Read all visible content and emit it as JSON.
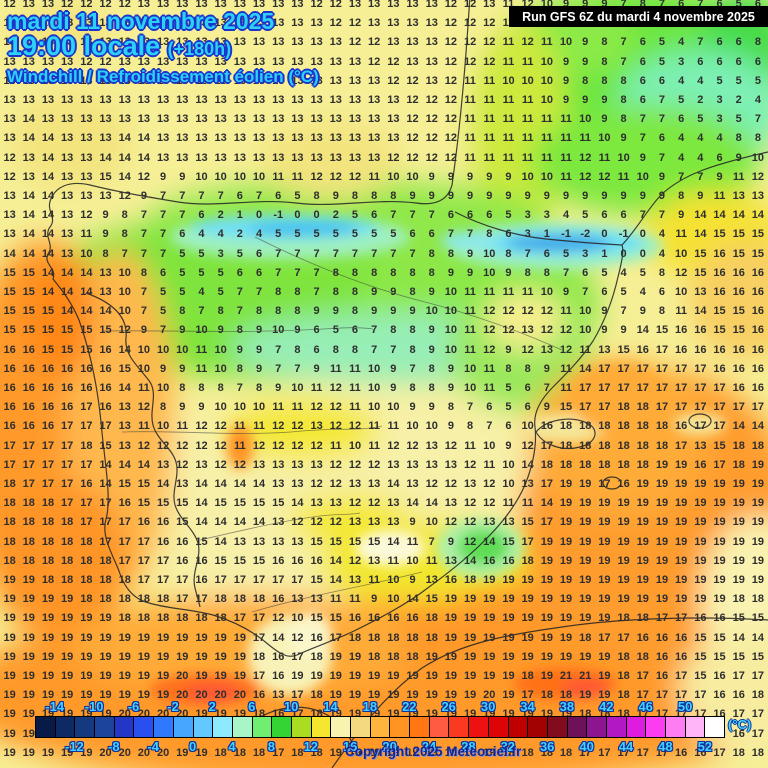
{
  "header": {
    "date_line": "mardi 11 novembre 2025",
    "time_line": "19:00 locale",
    "time_offset": "(+180h)",
    "variable_line": "Windchill / Refroidissement éolien (°C)",
    "run_info": "Run GFS 6Z du mardi 4 novembre 2025"
  },
  "footer": {
    "copyright": "Copyright 2025 Meteociel.fr",
    "unit_label": "(°C)"
  },
  "colors": {
    "header_text": "#2bd1f7",
    "header_outline": "#1b34cc",
    "scale_label": "#41d3ff",
    "scale_label_outline": "#12309c",
    "grid_number": "#2e2e2e",
    "run_box_bg": "#000000",
    "run_box_text": "#ffffff",
    "base_map": "#f6ef96"
  },
  "scale": {
    "top_labels": [
      "-14",
      "-10",
      "-6",
      "-2",
      "2",
      "6",
      "10",
      "14",
      "18",
      "22",
      "26",
      "30",
      "34",
      "38",
      "42",
      "46",
      "50"
    ],
    "bottom_labels": [
      "-12",
      "-8",
      "-4",
      "0",
      "4",
      "8",
      "12",
      "16",
      "20",
      "24",
      "28",
      "32",
      "36",
      "40",
      "44",
      "48",
      "52"
    ],
    "cell_colors": [
      "#081a48",
      "#0e2a64",
      "#15397f",
      "#1c449c",
      "#2336c6",
      "#2950ee",
      "#2e79ff",
      "#47a6ff",
      "#63c8ff",
      "#8deaff",
      "#a8f5c8",
      "#70ee70",
      "#33d433",
      "#aadd22",
      "#f5e72e",
      "#f9f3b0",
      "#f5d97e",
      "#ffb43c",
      "#ff9422",
      "#ff7613",
      "#ff5b40",
      "#fa3a20",
      "#ee1111",
      "#dc0404",
      "#c00000",
      "#a30202",
      "#820b1e",
      "#6d1158",
      "#8c1590",
      "#b219c4",
      "#de1ce0",
      "#fb3cf0",
      "#ff7df2",
      "#ffb5f8",
      "#ffffff"
    ]
  },
  "grid": {
    "cols": 40,
    "rows": [
      "12 13 13 12 12 12 12 13 13 13 13 13 13 13 13 13 12 12 13 13 13 13 13 12 12 13 11 12 10 9 9 9 7 8 7 6 7 6 5 6",
      "13 13 13 13 13 13 13 13 13 13 13 13 13 13 13 13 13 12 12 13 13 13 13 12 12 12 11 12 11 10 9 8 8 7 6 5 6 6 6 7",
      "13 13 13 13 13 13 13 13 13 13 13 13 13 13 13 13 13 13 12 12 13 13 13 12 12 12 11 12 11 10 9 8 7 6 5 4 7 6 6 8",
      "13 13 13 13 12 12 13 13 13 13 13 13 13 13 13 13 13 13 13 12 12 13 13 12 12 12 11 11 10 9 9 8 7 6 5 3 6 6 6 6",
      "13 13 13 13 13 13 13 13 13 13 13 13 13 13 13 13 13 13 13 13 12 12 13 12 11 11 10 10 10 9 8 8 8 6 6 4 4 5 5 5",
      "13 13 13 13 13 13 13 13 13 13 13 13 13 13 13 13 13 13 13 13 13 12 12 12 11 11 11 11 10 9 9 9 8 6 7 5 2 3 2 4",
      "13 14 13 13 13 13 13 13 13 13 13 13 13 13 13 13 13 13 13 13 13 12 12 12 11 11 11 11 11 11 10 9 8 7 7 6 5 3 5 7",
      "13 14 14 13 13 13 14 14 13 13 13 13 13 13 13 13 13 13 13 13 13 12 12 12 11 11 11 11 11 11 11 10 9 7 6 4 4 4 8 8",
      "12 13 14 13 13 14 14 14 13 13 13 13 13 13 13 13 13 13 13 13 12 12 12 12 11 11 11 11 11 11 12 11 10 9 7 4 4 6 9 10",
      "12 13 14 13 13 15 14 12 9 9 10 10 10 10 11 11 12 12 12 11 10 10 9 9 9 9 9 10 10 11 12 12 11 10 9 7 7 9 11 12",
      "13 14 14 13 13 13 12 9 7 7 7 7 6 7 6 5 8 9 8 8 8 9 9 9 9 9 9 9 9 9 9 9 9 9 9 8 9 11 13 13",
      "13 14 14 13 12 9 8 7 7 7 6 2 1 0 -1 0 0 2 5 6 7 7 7 6 6 6 5 3 3 4 5 6 6 7 7 9 14 14 14 14",
      "13 14 14 13 11 9 8 7 7 6 4 4 2 4 5 5 5 5 5 5 5 6 6 7 7 8 6 3 1 -1 -2 0 -1 0 4 11 14 15 15 15",
      "14 14 14 13 10 8 7 7 7 5 5 3 5 6 7 7 7 7 7 7 7 7 8 8 9 10 8 7 6 5 3 1 0 0 4 10 15 16 15 15",
      "15 15 14 14 14 13 10 8 6 5 5 5 6 6 7 7 7 8 8 8 8 8 8 9 9 10 9 8 8 7 6 5 4 5 8 12 15 16 16 16",
      "15 15 14 14 14 13 10 7 5 5 4 5 7 7 8 8 7 8 8 9 9 8 9 10 11 11 11 11 10 9 7 6 5 4 6 10 13 16 16 16",
      "15 15 15 14 14 14 10 7 5 8 7 8 7 8 8 8 9 9 8 9 9 9 10 10 11 12 12 12 12 11 10 9 7 9 8 11 14 15 15 16",
      "15 15 15 15 15 15 12 9 7 9 10 9 8 9 10 9 6 5 6 7 8 8 9 10 11 12 12 13 12 12 10 9 9 14 15 16 16 15 15 16",
      "16 16 15 15 15 16 14 10 10 10 11 10 9 9 7 8 6 8 8 7 7 8 9 10 11 12 9 12 13 12 11 13 15 16 17 16 16 16 16 16",
      "16 16 16 16 16 16 15 10 9 9 11 10 8 9 7 7 9 11 11 10 9 7 8 9 10 11 8 8 9 11 14 17 17 17 17 17 17 16 16 16",
      "16 16 16 16 16 16 14 11 10 8 8 8 7 8 9 10 11 12 11 10 9 8 8 9 10 11 5 6 7 11 17 17 17 17 17 17 17 17 16 16",
      "16 16 16 16 17 16 13 12 8 9 9 10 10 10 11 11 12 12 11 10 10 9 9 8 7 6 5 6 9 15 17 17 18 18 17 17 17 17 17 17",
      "16 16 16 17 17 17 13 11 10 11 12 12 11 11 12 12 13 12 12 11 11 10 10 9 8 7 6 10 16 18 18 18 18 18 18 16 17 17 14 14",
      "17 17 17 17 18 15 13 12 12 12 12 12 11 12 12 12 12 11 10 11 12 12 13 12 11 10 9 12 17 18 18 18 18 18 18 17 13 15 18 18",
      "17 17 17 17 17 14 14 14 13 12 13 12 12 13 13 13 13 12 12 12 13 13 13 13 12 11 10 14 18 18 18 18 18 18 19 19 16 17 18 19",
      "18 17 17 17 16 14 15 15 14 13 14 14 14 14 13 13 12 12 13 13 14 13 12 12 13 12 10 13 17 19 19 17 16 19 19 19 19 19 19 19",
      "18 18 18 17 17 17 16 15 15 15 14 15 15 15 15 14 13 13 12 12 13 14 14 13 12 12 11 11 14 19 19 19 19 19 19 19 19 19 19 19",
      "18 18 18 18 17 17 17 16 16 15 14 14 14 14 13 12 12 12 13 13 13 9 10 12 12 13 13 15 17 19 19 19 19 19 19 19 19 19 19 19",
      "18 18 18 18 18 17 17 17 16 16 15 14 13 13 13 13 15 15 15 15 14 11 7 9 12 14 15 17 19 19 19 19 19 19 19 19 19 19 19 19",
      "18 18 18 18 18 18 17 17 17 16 16 15 15 15 16 16 16 14 12 13 11 10 11 13 14 16 16 18 19 19 19 19 19 19 19 19 19 19 19 19",
      "19 19 18 18 18 18 18 17 17 17 16 17 17 17 17 17 15 14 13 11 10 9 13 16 18 19 19 19 19 19 19 19 19 19 19 19 19 19 19 19",
      "19 19 19 19 18 18 18 18 18 17 17 18 18 18 16 13 13 11 11 9 10 14 15 19 19 19 19 19 19 19 19 19 19 19 19 19 19 19 18 18",
      "19 19 19 19 19 19 18 18 18 18 18 18 17 17 12 10 15 15 16 16 16 16 18 19 19 19 19 19 19 19 19 19 18 18 17 17 16 16 15 15",
      "19 19 19 19 19 19 19 19 19 19 19 19 19 17 14 12 16 17 18 18 18 18 18 19 19 19 19 19 19 19 18 17 17 16 16 16 15 15 14 14",
      "19 19 19 19 19 19 19 19 19 19 19 19 19 18 16 17 18 19 19 18 18 18 19 19 19 19 19 19 19 19 19 19 18 18 16 16 15 15 15 15",
      "19 19 19 19 19 19 19 19 19 20 19 19 19 17 16 19 19 19 19 19 19 19 19 19 19 19 19 18 19 21 21 19 18 17 16 17 15 16 17 17",
      "19 19 19 19 19 19 19 19 19 20 20 20 20 16 13 17 18 19 19 19 19 19 19 19 19 20 19 17 18 18 19 19 18 17 17 17 17 16 16 18",
      "19 19 19 19 19 19 20 20 20 20 19 19 19 18 16 17 18 19 19 19 19 19 19 19 19 19 19 19 19 19 18 18 18 17 17 17 17 16 17 17",
      "19 19 19 19 19 19 20 20 20 19 19 19 18 17 16 17 18 19 19 19 19 19 19 19 19 19 19 19 18 18 18 18 17 17 17 17 16 16 16 17",
      "19 19 19 19 19 20 20 20 20 19 19 18 18 18 17 18 18 19 19 19 19 19 19 19 19 19 18 18 18 18 17 17 17 17 17 16 16 17 18 18"
    ]
  }
}
